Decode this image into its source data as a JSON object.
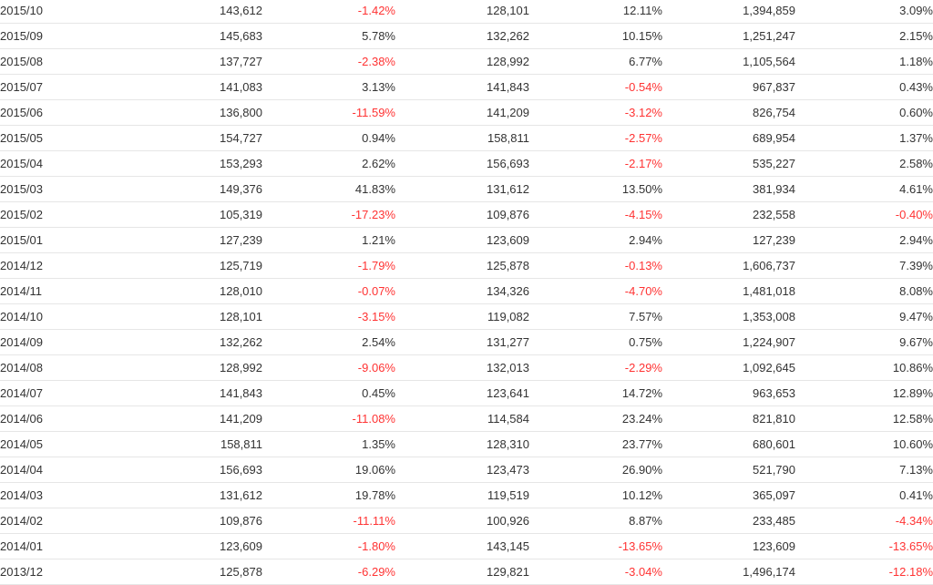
{
  "colors": {
    "text": "#333333",
    "negative": "#ff3333",
    "row_divider": "#e6e6e6"
  },
  "rows": [
    {
      "month": "2015/10",
      "v1": "143,612",
      "p1": "-1.42%",
      "v2": "128,101",
      "p2": "12.11%",
      "v3": "1,394,859",
      "p3": "3.09%"
    },
    {
      "month": "2015/09",
      "v1": "145,683",
      "p1": "5.78%",
      "v2": "132,262",
      "p2": "10.15%",
      "v3": "1,251,247",
      "p3": "2.15%"
    },
    {
      "month": "2015/08",
      "v1": "137,727",
      "p1": "-2.38%",
      "v2": "128,992",
      "p2": "6.77%",
      "v3": "1,105,564",
      "p3": "1.18%"
    },
    {
      "month": "2015/07",
      "v1": "141,083",
      "p1": "3.13%",
      "v2": "141,843",
      "p2": "-0.54%",
      "v3": "967,837",
      "p3": "0.43%"
    },
    {
      "month": "2015/06",
      "v1": "136,800",
      "p1": "-11.59%",
      "v2": "141,209",
      "p2": "-3.12%",
      "v3": "826,754",
      "p3": "0.60%"
    },
    {
      "month": "2015/05",
      "v1": "154,727",
      "p1": "0.94%",
      "v2": "158,811",
      "p2": "-2.57%",
      "v3": "689,954",
      "p3": "1.37%"
    },
    {
      "month": "2015/04",
      "v1": "153,293",
      "p1": "2.62%",
      "v2": "156,693",
      "p2": "-2.17%",
      "v3": "535,227",
      "p3": "2.58%"
    },
    {
      "month": "2015/03",
      "v1": "149,376",
      "p1": "41.83%",
      "v2": "131,612",
      "p2": "13.50%",
      "v3": "381,934",
      "p3": "4.61%"
    },
    {
      "month": "2015/02",
      "v1": "105,319",
      "p1": "-17.23%",
      "v2": "109,876",
      "p2": "-4.15%",
      "v3": "232,558",
      "p3": "-0.40%"
    },
    {
      "month": "2015/01",
      "v1": "127,239",
      "p1": "1.21%",
      "v2": "123,609",
      "p2": "2.94%",
      "v3": "127,239",
      "p3": "2.94%"
    },
    {
      "month": "2014/12",
      "v1": "125,719",
      "p1": "-1.79%",
      "v2": "125,878",
      "p2": "-0.13%",
      "v3": "1,606,737",
      "p3": "7.39%"
    },
    {
      "month": "2014/11",
      "v1": "128,010",
      "p1": "-0.07%",
      "v2": "134,326",
      "p2": "-4.70%",
      "v3": "1,481,018",
      "p3": "8.08%"
    },
    {
      "month": "2014/10",
      "v1": "128,101",
      "p1": "-3.15%",
      "v2": "119,082",
      "p2": "7.57%",
      "v3": "1,353,008",
      "p3": "9.47%"
    },
    {
      "month": "2014/09",
      "v1": "132,262",
      "p1": "2.54%",
      "v2": "131,277",
      "p2": "0.75%",
      "v3": "1,224,907",
      "p3": "9.67%"
    },
    {
      "month": "2014/08",
      "v1": "128,992",
      "p1": "-9.06%",
      "v2": "132,013",
      "p2": "-2.29%",
      "v3": "1,092,645",
      "p3": "10.86%"
    },
    {
      "month": "2014/07",
      "v1": "141,843",
      "p1": "0.45%",
      "v2": "123,641",
      "p2": "14.72%",
      "v3": "963,653",
      "p3": "12.89%"
    },
    {
      "month": "2014/06",
      "v1": "141,209",
      "p1": "-11.08%",
      "v2": "114,584",
      "p2": "23.24%",
      "v3": "821,810",
      "p3": "12.58%"
    },
    {
      "month": "2014/05",
      "v1": "158,811",
      "p1": "1.35%",
      "v2": "128,310",
      "p2": "23.77%",
      "v3": "680,601",
      "p3": "10.60%"
    },
    {
      "month": "2014/04",
      "v1": "156,693",
      "p1": "19.06%",
      "v2": "123,473",
      "p2": "26.90%",
      "v3": "521,790",
      "p3": "7.13%"
    },
    {
      "month": "2014/03",
      "v1": "131,612",
      "p1": "19.78%",
      "v2": "119,519",
      "p2": "10.12%",
      "v3": "365,097",
      "p3": "0.41%"
    },
    {
      "month": "2014/02",
      "v1": "109,876",
      "p1": "-11.11%",
      "v2": "100,926",
      "p2": "8.87%",
      "v3": "233,485",
      "p3": "-4.34%"
    },
    {
      "month": "2014/01",
      "v1": "123,609",
      "p1": "-1.80%",
      "v2": "143,145",
      "p2": "-13.65%",
      "v3": "123,609",
      "p3": "-13.65%"
    },
    {
      "month": "2013/12",
      "v1": "125,878",
      "p1": "-6.29%",
      "v2": "129,821",
      "p2": "-3.04%",
      "v3": "1,496,174",
      "p3": "-12.18%"
    }
  ]
}
